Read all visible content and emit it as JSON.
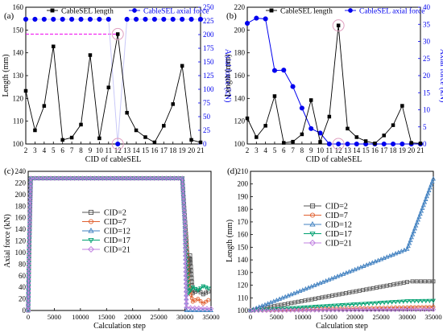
{
  "colors": {
    "black": "#000000",
    "blue": "#0000ee",
    "magenta": "#ee00ee",
    "pink_circle": "#e0a0c0",
    "gray": "#555555",
    "orange": "#e06030",
    "teal": "#00a070",
    "violet": "#c080e0",
    "steel": "#4080c0"
  },
  "chart_data": [
    {
      "id": "a",
      "type": "line",
      "panel_label": "(a)",
      "xlabel": "CID of cableSEL",
      "ylabel": "Length (mm)",
      "y2label": "Axial force (kN)",
      "xlim": [
        2,
        21
      ],
      "ylim": [
        100,
        160
      ],
      "y2lim": [
        0,
        250
      ],
      "x_ticks": [
        2,
        3,
        4,
        5,
        6,
        7,
        8,
        9,
        10,
        11,
        12,
        13,
        14,
        15,
        16,
        17,
        18,
        19,
        20,
        21
      ],
      "y_ticks": [
        100,
        110,
        120,
        130,
        140,
        150,
        160
      ],
      "y2_ticks": [
        0,
        25,
        50,
        75,
        100,
        125,
        150,
        175,
        200,
        225,
        250
      ],
      "x": [
        2,
        3,
        4,
        5,
        6,
        7,
        8,
        9,
        10,
        11,
        12,
        13,
        14,
        15,
        16,
        17,
        18,
        19,
        20,
        21
      ],
      "series": [
        {
          "name": "CableSEL length",
          "axis": "left",
          "values": [
            123.3,
            106,
            116.7,
            142.8,
            101.8,
            102.8,
            108.5,
            139,
            102.5,
            124.8,
            148.2,
            113.7,
            106,
            103,
            100.7,
            108,
            117.5,
            134.3,
            101.8,
            100.7
          ]
        },
        {
          "name": "CableSEL axial force",
          "axis": "right",
          "values": [
            228,
            228,
            228,
            228,
            228,
            228,
            228,
            228,
            228,
            228,
            0,
            228,
            228,
            228,
            228,
            228,
            228,
            228,
            228,
            228
          ]
        }
      ],
      "annotations": {
        "dashed_line_y": 148.2,
        "circles_at_x": 12
      }
    },
    {
      "id": "b",
      "type": "line",
      "panel_label": "(b)",
      "xlabel": "CID of cableSEL",
      "ylabel": "Length (mm)",
      "y2label": "Axial force (kN)",
      "xlim": [
        2,
        21
      ],
      "ylim": [
        100,
        220
      ],
      "y2lim": [
        0,
        40
      ],
      "x_ticks": [
        2,
        3,
        4,
        5,
        6,
        7,
        8,
        9,
        10,
        11,
        12,
        13,
        14,
        15,
        16,
        17,
        18,
        19,
        20,
        21
      ],
      "y_ticks": [
        100,
        120,
        140,
        160,
        180,
        200,
        220
      ],
      "y2_ticks": [
        0,
        5,
        10,
        15,
        20,
        25,
        30,
        35,
        40
      ],
      "x": [
        2,
        3,
        4,
        5,
        6,
        7,
        8,
        9,
        10,
        11,
        12,
        13,
        14,
        15,
        16,
        17,
        18,
        19,
        20,
        21
      ],
      "series": [
        {
          "name": "CableSEL length",
          "axis": "left",
          "values": [
            122.5,
            106,
            116,
            142,
            101,
            102,
            108.5,
            138.5,
            101.8,
            124,
            204,
            113.5,
            106,
            102.5,
            100.5,
            107.5,
            116.5,
            133.5,
            101,
            100.5
          ]
        },
        {
          "name": "CableSEL axial force",
          "axis": "right",
          "values": [
            35.3,
            36.8,
            36.6,
            21.5,
            21.6,
            16.8,
            10.5,
            4.5,
            3.2,
            0,
            0,
            0,
            0,
            0,
            0,
            0,
            0,
            0,
            0,
            0
          ]
        }
      ],
      "annotations": {
        "circles_at_x": 12
      }
    },
    {
      "id": "c",
      "type": "line",
      "panel_label": "(c)",
      "xlabel": "Calculation step",
      "ylabel": "Axial force (kN)",
      "xlim": [
        0,
        35000
      ],
      "ylim": [
        0,
        240
      ],
      "x_ticks": [
        0,
        5000,
        10000,
        15000,
        20000,
        25000,
        30000,
        35000
      ],
      "y_ticks": [
        0,
        20,
        40,
        60,
        80,
        100,
        120,
        140,
        160,
        180,
        200,
        220,
        240
      ],
      "series": [
        {
          "name": "CID=2",
          "marker": "square",
          "points": [
            [
              0,
              0
            ],
            [
              200,
              110
            ],
            [
              500,
              228
            ],
            [
              29500,
              228
            ],
            [
              30300,
              120
            ],
            [
              30700,
              60
            ],
            [
              31000,
              95
            ],
            [
              31500,
              30
            ],
            [
              32500,
              35
            ],
            [
              33500,
              28
            ],
            [
              34500,
              33
            ]
          ]
        },
        {
          "name": "CID=7",
          "marker": "circle",
          "points": [
            [
              0,
              0
            ],
            [
              200,
              100
            ],
            [
              500,
              228
            ],
            [
              29500,
              228
            ],
            [
              30300,
              110
            ],
            [
              30700,
              45
            ],
            [
              31500,
              15
            ],
            [
              32500,
              20
            ],
            [
              33500,
              12
            ],
            [
              34500,
              18
            ]
          ]
        },
        {
          "name": "CID=12",
          "marker": "triangle-up",
          "points": [
            [
              0,
              0
            ],
            [
              200,
              120
            ],
            [
              500,
              228
            ],
            [
              29500,
              228
            ],
            [
              30000,
              150
            ],
            [
              30300,
              0
            ],
            [
              35000,
              0
            ]
          ]
        },
        {
          "name": "CID=17",
          "marker": "triangle-down",
          "points": [
            [
              0,
              0
            ],
            [
              200,
              110
            ],
            [
              500,
              228
            ],
            [
              29500,
              228
            ],
            [
              30300,
              90
            ],
            [
              30700,
              30
            ],
            [
              31500,
              40
            ],
            [
              32500,
              35
            ],
            [
              33500,
              42
            ],
            [
              34500,
              38
            ]
          ]
        },
        {
          "name": "CID=21",
          "marker": "diamond",
          "points": [
            [
              0,
              0
            ],
            [
              200,
              115
            ],
            [
              500,
              228
            ],
            [
              29500,
              228
            ],
            [
              30000,
              150
            ],
            [
              30300,
              5
            ],
            [
              35000,
              3
            ]
          ]
        }
      ]
    },
    {
      "id": "d",
      "type": "line",
      "panel_label": "(d)",
      "xlabel": "Calculation step",
      "ylabel": "Length (mm)",
      "xlim": [
        0,
        35000
      ],
      "ylim": [
        100,
        210
      ],
      "x_ticks": [
        0,
        5000,
        10000,
        15000,
        20000,
        25000,
        30000,
        35000
      ],
      "y_ticks": [
        100,
        110,
        120,
        130,
        140,
        150,
        160,
        170,
        180,
        190,
        200,
        210
      ],
      "series": [
        {
          "name": "CID=2",
          "marker": "square",
          "points": [
            [
              0,
              100
            ],
            [
              30000,
              122.5
            ],
            [
              31000,
              123
            ],
            [
              35000,
              123
            ]
          ]
        },
        {
          "name": "CID=7",
          "marker": "circle",
          "points": [
            [
              0,
              100
            ],
            [
              30000,
              102.5
            ],
            [
              35000,
              102.8
            ]
          ]
        },
        {
          "name": "CID=12",
          "marker": "triangle-up",
          "points": [
            [
              0,
              100
            ],
            [
              30000,
              148.5
            ],
            [
              35000,
              204
            ]
          ]
        },
        {
          "name": "CID=17",
          "marker": "triangle-down",
          "points": [
            [
              0,
              100
            ],
            [
              30000,
              107.5
            ],
            [
              35000,
              107.8
            ]
          ]
        },
        {
          "name": "CID=21",
          "marker": "diamond",
          "points": [
            [
              0,
              100
            ],
            [
              30000,
              100.8
            ],
            [
              35000,
              100.8
            ]
          ]
        }
      ]
    }
  ]
}
